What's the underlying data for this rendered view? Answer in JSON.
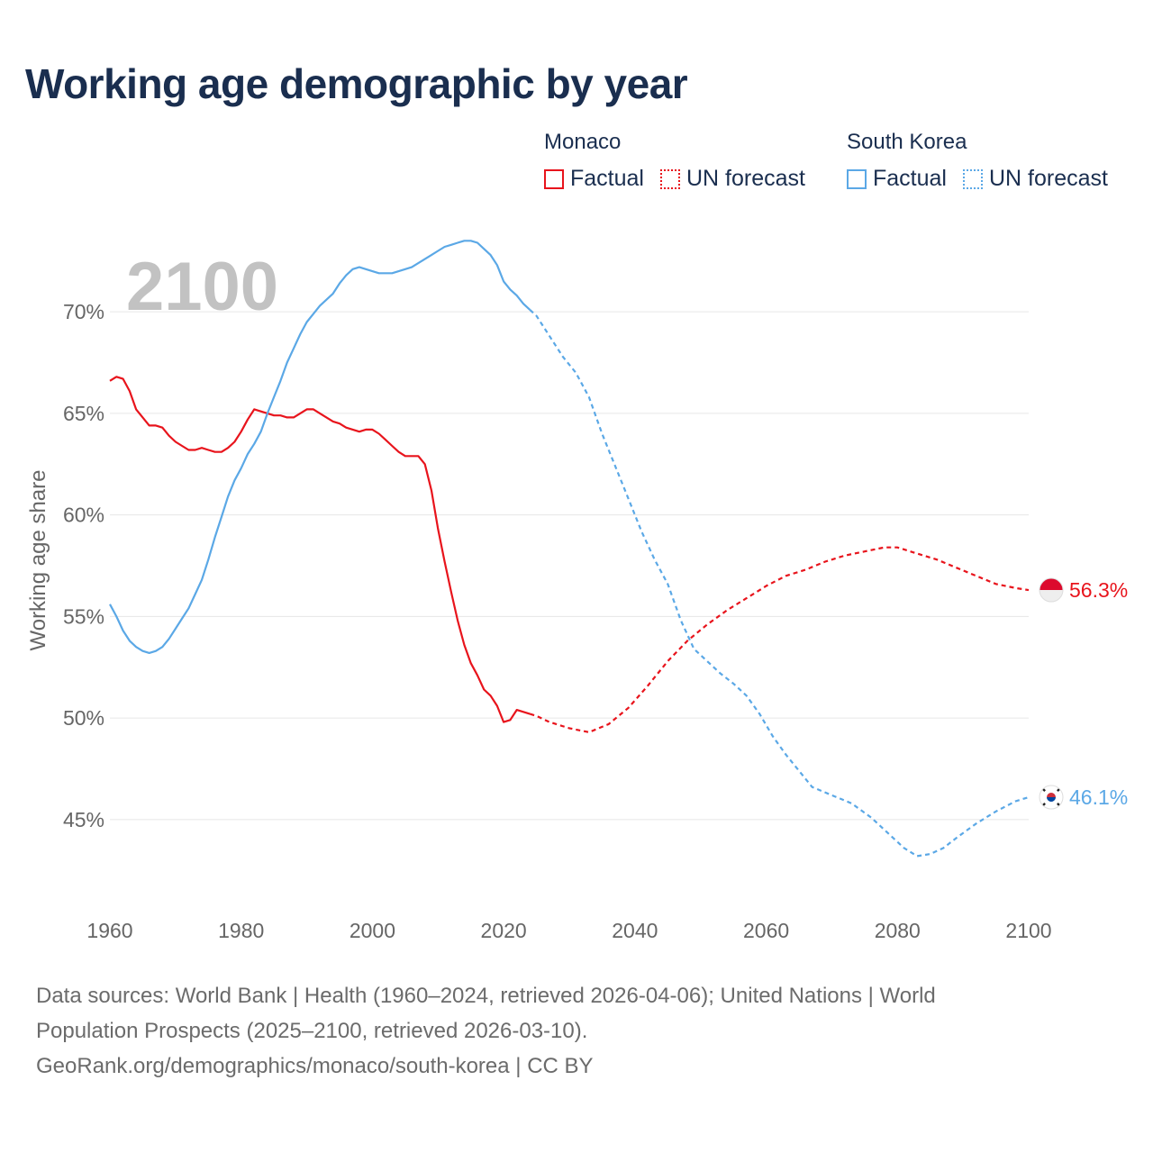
{
  "title": "Working age demographic by year",
  "legend": {
    "groups": [
      {
        "country": "Monaco",
        "factual_label": "Factual",
        "forecast_label": "UN forecast",
        "color": "#e8141c"
      },
      {
        "country": "South Korea",
        "factual_label": "Factual",
        "forecast_label": "UN forecast",
        "color": "#5ba8e6"
      }
    ]
  },
  "sources": {
    "line1": "Data sources: World Bank | Health (1960–2024, retrieved 2026-04-06); United Nations | World",
    "line2": "Population Prospects (2025–2100, retrieved 2026-03-10).",
    "line3": "GeoRank.org/demographics/monaco/south-korea | CC BY"
  },
  "chart_data": {
    "type": "line",
    "title": "Working age demographic by year",
    "year_watermark": "2100",
    "xlabel": "",
    "ylabel": "Working age share",
    "xlim": [
      1960,
      2100
    ],
    "ylim": [
      41,
      74
    ],
    "x_ticks": [
      1960,
      1980,
      2000,
      2020,
      2040,
      2060,
      2080,
      2100
    ],
    "y_ticks": [
      45,
      50,
      55,
      60,
      65,
      70
    ],
    "y_tick_labels": [
      "45%",
      "50%",
      "55%",
      "60%",
      "65%",
      "70%"
    ],
    "grid": "horizontal",
    "series": [
      {
        "name": "Monaco",
        "color": "#e8141c",
        "end_label": "56.3%",
        "flag_colors": [
          "#dc0a2d",
          "#eeeeee"
        ],
        "factual": [
          [
            1960,
            66.6
          ],
          [
            1961,
            66.8
          ],
          [
            1962,
            66.7
          ],
          [
            1963,
            66.1
          ],
          [
            1964,
            65.2
          ],
          [
            1965,
            64.8
          ],
          [
            1966,
            64.4
          ],
          [
            1967,
            64.4
          ],
          [
            1968,
            64.3
          ],
          [
            1969,
            63.9
          ],
          [
            1970,
            63.6
          ],
          [
            1971,
            63.4
          ],
          [
            1972,
            63.2
          ],
          [
            1973,
            63.2
          ],
          [
            1974,
            63.3
          ],
          [
            1975,
            63.2
          ],
          [
            1976,
            63.1
          ],
          [
            1977,
            63.1
          ],
          [
            1978,
            63.3
          ],
          [
            1979,
            63.6
          ],
          [
            1980,
            64.1
          ],
          [
            1981,
            64.7
          ],
          [
            1982,
            65.2
          ],
          [
            1983,
            65.1
          ],
          [
            1984,
            65.0
          ],
          [
            1985,
            64.9
          ],
          [
            1986,
            64.9
          ],
          [
            1987,
            64.8
          ],
          [
            1988,
            64.8
          ],
          [
            1989,
            65.0
          ],
          [
            1990,
            65.2
          ],
          [
            1991,
            65.2
          ],
          [
            1992,
            65.0
          ],
          [
            1993,
            64.8
          ],
          [
            1994,
            64.6
          ],
          [
            1995,
            64.5
          ],
          [
            1996,
            64.3
          ],
          [
            1997,
            64.2
          ],
          [
            1998,
            64.1
          ],
          [
            1999,
            64.2
          ],
          [
            2000,
            64.2
          ],
          [
            2001,
            64.0
          ],
          [
            2002,
            63.7
          ],
          [
            2003,
            63.4
          ],
          [
            2004,
            63.1
          ],
          [
            2005,
            62.9
          ],
          [
            2006,
            62.9
          ],
          [
            2007,
            62.9
          ],
          [
            2008,
            62.5
          ],
          [
            2009,
            61.2
          ],
          [
            2010,
            59.3
          ],
          [
            2011,
            57.7
          ],
          [
            2012,
            56.2
          ],
          [
            2013,
            54.8
          ],
          [
            2014,
            53.6
          ],
          [
            2015,
            52.7
          ],
          [
            2016,
            52.1
          ],
          [
            2017,
            51.4
          ],
          [
            2018,
            51.1
          ],
          [
            2019,
            50.6
          ],
          [
            2020,
            49.8
          ],
          [
            2021,
            49.9
          ],
          [
            2022,
            50.4
          ],
          [
            2023,
            50.3
          ],
          [
            2024,
            50.2
          ]
        ],
        "forecast": [
          [
            2024,
            50.2
          ],
          [
            2025,
            50.1
          ],
          [
            2027,
            49.8
          ],
          [
            2030,
            49.5
          ],
          [
            2033,
            49.3
          ],
          [
            2036,
            49.7
          ],
          [
            2039,
            50.5
          ],
          [
            2042,
            51.6
          ],
          [
            2045,
            52.8
          ],
          [
            2048,
            53.8
          ],
          [
            2051,
            54.6
          ],
          [
            2054,
            55.3
          ],
          [
            2057,
            55.9
          ],
          [
            2060,
            56.5
          ],
          [
            2063,
            57.0
          ],
          [
            2066,
            57.3
          ],
          [
            2069,
            57.7
          ],
          [
            2072,
            58.0
          ],
          [
            2075,
            58.2
          ],
          [
            2078,
            58.4
          ],
          [
            2080,
            58.4
          ],
          [
            2083,
            58.1
          ],
          [
            2086,
            57.8
          ],
          [
            2089,
            57.4
          ],
          [
            2092,
            57.0
          ],
          [
            2095,
            56.6
          ],
          [
            2098,
            56.4
          ],
          [
            2100,
            56.3
          ]
        ]
      },
      {
        "name": "South Korea",
        "color": "#5ba8e6",
        "end_label": "46.1%",
        "flag_colors": [
          "#ffffff",
          "#cd2e3a",
          "#0047a0",
          "#222222"
        ],
        "factual": [
          [
            1960,
            55.6
          ],
          [
            1961,
            55.0
          ],
          [
            1962,
            54.3
          ],
          [
            1963,
            53.8
          ],
          [
            1964,
            53.5
          ],
          [
            1965,
            53.3
          ],
          [
            1966,
            53.2
          ],
          [
            1967,
            53.3
          ],
          [
            1968,
            53.5
          ],
          [
            1969,
            53.9
          ],
          [
            1970,
            54.4
          ],
          [
            1971,
            54.9
          ],
          [
            1972,
            55.4
          ],
          [
            1973,
            56.1
          ],
          [
            1974,
            56.8
          ],
          [
            1975,
            57.8
          ],
          [
            1976,
            58.9
          ],
          [
            1977,
            59.9
          ],
          [
            1978,
            60.9
          ],
          [
            1979,
            61.7
          ],
          [
            1980,
            62.3
          ],
          [
            1981,
            63.0
          ],
          [
            1982,
            63.5
          ],
          [
            1983,
            64.1
          ],
          [
            1984,
            65.0
          ],
          [
            1985,
            65.8
          ],
          [
            1986,
            66.6
          ],
          [
            1987,
            67.5
          ],
          [
            1988,
            68.2
          ],
          [
            1989,
            68.9
          ],
          [
            1990,
            69.5
          ],
          [
            1991,
            69.9
          ],
          [
            1992,
            70.3
          ],
          [
            1993,
            70.6
          ],
          [
            1994,
            70.9
          ],
          [
            1995,
            71.4
          ],
          [
            1996,
            71.8
          ],
          [
            1997,
            72.1
          ],
          [
            1998,
            72.2
          ],
          [
            1999,
            72.1
          ],
          [
            2000,
            72.0
          ],
          [
            2001,
            71.9
          ],
          [
            2002,
            71.9
          ],
          [
            2003,
            71.9
          ],
          [
            2004,
            72.0
          ],
          [
            2005,
            72.1
          ],
          [
            2006,
            72.2
          ],
          [
            2007,
            72.4
          ],
          [
            2008,
            72.6
          ],
          [
            2009,
            72.8
          ],
          [
            2010,
            73.0
          ],
          [
            2011,
            73.2
          ],
          [
            2012,
            73.3
          ],
          [
            2013,
            73.4
          ],
          [
            2014,
            73.5
          ],
          [
            2015,
            73.5
          ],
          [
            2016,
            73.4
          ],
          [
            2017,
            73.1
          ],
          [
            2018,
            72.8
          ],
          [
            2019,
            72.3
          ],
          [
            2020,
            71.5
          ],
          [
            2021,
            71.1
          ],
          [
            2022,
            70.8
          ],
          [
            2023,
            70.4
          ],
          [
            2024,
            70.1
          ]
        ],
        "forecast": [
          [
            2024,
            70.1
          ],
          [
            2025,
            69.8
          ],
          [
            2027,
            68.8
          ],
          [
            2029,
            67.8
          ],
          [
            2031,
            67.0
          ],
          [
            2033,
            65.8
          ],
          [
            2035,
            64.0
          ],
          [
            2037,
            62.4
          ],
          [
            2039,
            60.8
          ],
          [
            2041,
            59.2
          ],
          [
            2043,
            57.8
          ],
          [
            2045,
            56.6
          ],
          [
            2047,
            54.8
          ],
          [
            2049,
            53.4
          ],
          [
            2051,
            52.8
          ],
          [
            2053,
            52.2
          ],
          [
            2055,
            51.7
          ],
          [
            2057,
            51.1
          ],
          [
            2059,
            50.2
          ],
          [
            2061,
            49.1
          ],
          [
            2063,
            48.2
          ],
          [
            2065,
            47.4
          ],
          [
            2067,
            46.6
          ],
          [
            2070,
            46.2
          ],
          [
            2073,
            45.8
          ],
          [
            2076,
            45.1
          ],
          [
            2079,
            44.2
          ],
          [
            2081,
            43.6
          ],
          [
            2083,
            43.2
          ],
          [
            2085,
            43.3
          ],
          [
            2087,
            43.6
          ],
          [
            2089,
            44.1
          ],
          [
            2092,
            44.8
          ],
          [
            2095,
            45.4
          ],
          [
            2098,
            45.9
          ],
          [
            2100,
            46.1
          ]
        ]
      }
    ]
  }
}
